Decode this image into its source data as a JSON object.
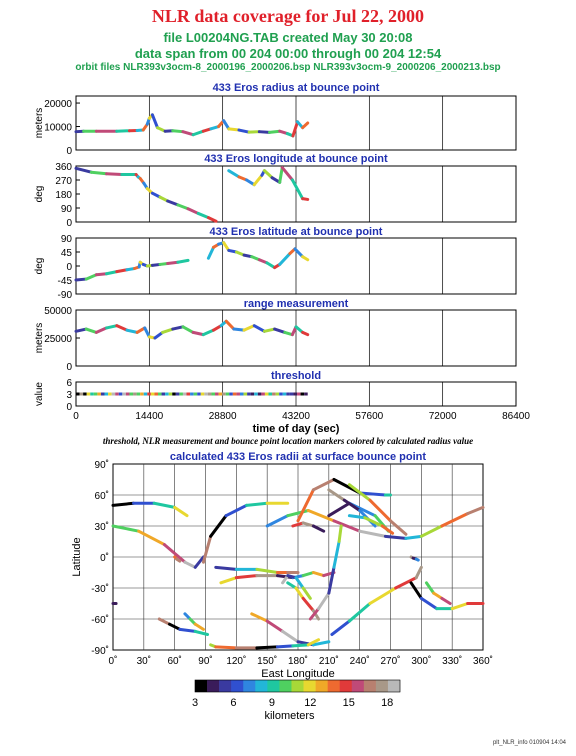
{
  "header": {
    "title": "NLR data coverage for Jul 22, 2000",
    "file_line": "file L00204NG.TAB created May 30 20:08",
    "span_line": "data span from 00 204 00:00 through 00 204 12:54",
    "orbit_line": "orbit files NLR393v3ocm-8_2000196_2000206.bsp NLR393v3ocm-9_2000206_2000213.bsp"
  },
  "colors": {
    "title": "#e0202a",
    "header_green": "#20a050",
    "panel_title": "#2030b0",
    "colorbar": [
      "#000000",
      "#3a1c5a",
      "#3a3aa0",
      "#3050d0",
      "#2f86e0",
      "#22b6d8",
      "#1fc7a0",
      "#4fd060",
      "#a8d838",
      "#e8d830",
      "#f0a828",
      "#ee6a30",
      "#e03a3a",
      "#c04a78",
      "#b88070",
      "#a89888",
      "#b8b8b8"
    ]
  },
  "footer": "plt_NLR_info 010904 14:04",
  "caption": "threshold, NLR measurement and bounce point location markers colored by calculated radius value",
  "chart_data": [
    {
      "type": "line",
      "title": "433 Eros radius at bounce point",
      "ylabel": "meters",
      "xlim": [
        0,
        86400
      ],
      "ylim": [
        0,
        23000
      ],
      "yticks": [
        "0",
        "10000",
        "20000"
      ],
      "series": [
        {
          "x": [
            0,
            1500,
            4000,
            8000,
            10500,
            12000,
            13200,
            14000,
            14400,
            15000,
            16000,
            17500,
            19000,
            21000,
            23000,
            25000,
            26500,
            28000,
            29000,
            30000,
            32000,
            34000,
            36000,
            38000,
            40000,
            41500,
            42600,
            43500,
            44500,
            45500
          ],
          "y": [
            7800,
            8000,
            8000,
            8000,
            8200,
            8300,
            8500,
            11000,
            13500,
            15000,
            9500,
            8000,
            8200,
            7800,
            6500,
            8000,
            9000,
            10000,
            12500,
            9000,
            8500,
            7600,
            7800,
            7500,
            8000,
            7000,
            6000,
            12000,
            9500,
            11500
          ]
        }
      ]
    },
    {
      "type": "line",
      "title": "433 Eros longitude at bounce point",
      "ylabel": "deg",
      "xlim": [
        0,
        86400
      ],
      "ylim": [
        0,
        360
      ],
      "yticks": [
        "0",
        "90",
        "180",
        "270",
        "360"
      ],
      "series": [
        {
          "x": [
            0,
            3000,
            6000,
            9000,
            11800,
            12200,
            12600,
            13300,
            14000,
            15000,
            16500,
            18000,
            20000,
            22000,
            24000,
            26000,
            27500
          ],
          "y": [
            345,
            320,
            310,
            305,
            305,
            290,
            280,
            250,
            215,
            185,
            160,
            135,
            110,
            85,
            55,
            28,
            5
          ]
        },
        {
          "x": [
            30000,
            32000,
            33500,
            35000,
            36500,
            37000,
            38500,
            40000,
            40500,
            42500,
            44500,
            45500
          ],
          "y": [
            330,
            290,
            270,
            240,
            300,
            330,
            285,
            255,
            350,
            270,
            150,
            145
          ]
        }
      ]
    },
    {
      "type": "line",
      "title": "433 Eros latitude at bounce point",
      "ylabel": "deg",
      "xlim": [
        0,
        86400
      ],
      "ylim": [
        -90,
        90
      ],
      "yticks": [
        "-90",
        "-45",
        "0",
        "45",
        "90"
      ],
      "series": [
        {
          "x": [
            0,
            2000,
            4000,
            6000,
            8000,
            10000,
            11500,
            12400,
            12600,
            13200,
            14000,
            15000,
            16500,
            18000,
            20000,
            22000
          ],
          "y": [
            -45,
            -42,
            -28,
            -25,
            -18,
            -12,
            -8,
            -3,
            12,
            5,
            0,
            2,
            5,
            8,
            12,
            18
          ]
        },
        {
          "x": [
            26000,
            27000,
            28000,
            29000,
            30000,
            31500,
            33000,
            34500,
            36000,
            37500,
            39000,
            40000,
            42000,
            43000,
            44500,
            45500
          ],
          "y": [
            25,
            60,
            70,
            75,
            50,
            45,
            35,
            30,
            20,
            10,
            -5,
            5,
            40,
            55,
            30,
            20
          ]
        }
      ]
    },
    {
      "type": "line",
      "title": "range measurement",
      "ylabel": "meters",
      "xlim": [
        0,
        86400
      ],
      "ylim": [
        0,
        50000
      ],
      "yticks": [
        "0",
        "25000",
        "50000"
      ],
      "series": [
        {
          "x": [
            0,
            2000,
            4000,
            6000,
            8000,
            10000,
            12000,
            13500,
            14400,
            15500,
            17000,
            19000,
            21000,
            23000,
            25000,
            27000,
            28500,
            29500,
            31000,
            33000,
            35000,
            37000,
            39000,
            41000,
            42500,
            43200,
            44500,
            45500
          ],
          "y": [
            31000,
            33000,
            30000,
            34000,
            36000,
            32000,
            30000,
            34000,
            26000,
            25000,
            30000,
            33000,
            35000,
            30000,
            28000,
            32000,
            36000,
            40000,
            33000,
            32000,
            36000,
            31000,
            33000,
            30000,
            28000,
            35000,
            30000,
            28000
          ]
        }
      ]
    },
    {
      "type": "scatter",
      "title": "threshold",
      "ylabel": "value",
      "xlabel": "time of day (sec)",
      "xlim": [
        0,
        86400
      ],
      "ylim": [
        0,
        6
      ],
      "yticks": [
        "0",
        "3",
        "6"
      ],
      "xticks": [
        "0",
        "14400",
        "28800",
        "43200",
        "57600",
        "72000",
        "86400"
      ],
      "x_extent": [
        0,
        45500
      ],
      "level": 3
    },
    {
      "type": "scatter",
      "title": "calculated 433 Eros radii at surface bounce point",
      "xlabel": "East Longitude",
      "ylabel": "Latitude",
      "xlim": [
        0,
        360
      ],
      "ylim": [
        -90,
        90
      ],
      "xticks": [
        "0˚",
        "30˚",
        "60˚",
        "90˚",
        "120˚",
        "150˚",
        "180˚",
        "210˚",
        "240˚",
        "270˚",
        "300˚",
        "330˚",
        "360˚"
      ],
      "yticks": [
        "-90˚",
        "-60˚",
        "-30˚",
        "0˚",
        "30˚",
        "60˚",
        "90˚"
      ],
      "colorbar": {
        "label": "kilometers",
        "ticks": [
          "3",
          "6",
          "9",
          "12",
          "15",
          "18"
        ],
        "range": [
          3,
          19
        ]
      },
      "tracks": [
        {
          "lon": [
            0,
            20,
            40,
            60,
            72
          ],
          "lat": [
            50,
            52,
            52,
            48,
            40
          ]
        },
        {
          "lon": [
            0,
            25,
            50,
            70,
            80,
            88
          ],
          "lat": [
            30,
            25,
            12,
            -5,
            -10,
            0
          ]
        },
        {
          "lon": [
            88,
            95,
            110,
            130,
            150,
            170
          ],
          "lat": [
            -5,
            20,
            40,
            50,
            52,
            52
          ]
        },
        {
          "lon": [
            150,
            170,
            190,
            215,
            240,
            265,
            285,
            300,
            320,
            345,
            360
          ],
          "lat": [
            30,
            40,
            45,
            35,
            25,
            20,
            18,
            20,
            30,
            42,
            48
          ]
        },
        {
          "lon": [
            180,
            195,
            215,
            240,
            265,
            270
          ],
          "lat": [
            35,
            65,
            75,
            62,
            60,
            60
          ]
        },
        {
          "lon": [
            210,
            230,
            255,
            268
          ],
          "lat": [
            40,
            52,
            40,
            25
          ]
        },
        {
          "lon": [
            230,
            250,
            270,
            285
          ],
          "lat": [
            70,
            55,
            35,
            22
          ]
        },
        {
          "lon": [
            210,
            225,
            240,
            255
          ],
          "lat": [
            65,
            55,
            45,
            30
          ]
        },
        {
          "lon": [
            230,
            245,
            262,
            272
          ],
          "lat": [
            40,
            38,
            30,
            23
          ]
        },
        {
          "lon": [
            175,
            185,
            195,
            205
          ],
          "lat": [
            30,
            33,
            30,
            25
          ]
        },
        {
          "lon": [
            100,
            120,
            140,
            160,
            170,
            180
          ],
          "lat": [
            -10,
            -12,
            -12,
            -15,
            -15,
            -15
          ]
        },
        {
          "lon": [
            105,
            120,
            140,
            160,
            175,
            185,
            195,
            205,
            215
          ],
          "lat": [
            -25,
            -20,
            -18,
            -18,
            -20,
            -18,
            -15,
            -18,
            -15
          ]
        },
        {
          "lon": [
            165,
            170,
            178,
            185,
            192
          ],
          "lat": [
            -25,
            -18,
            -20,
            -30,
            -40
          ]
        },
        {
          "lon": [
            170,
            178,
            185,
            195,
            200
          ],
          "lat": [
            -25,
            -30,
            -40,
            -52,
            -60
          ]
        },
        {
          "lon": [
            192,
            200,
            210,
            215,
            220,
            222
          ],
          "lat": [
            -60,
            -50,
            -35,
            -10,
            15,
            30
          ]
        },
        {
          "lon": [
            213,
            230,
            250,
            275,
            295,
            300
          ],
          "lat": [
            -75,
            -62,
            -45,
            -30,
            -20,
            -10
          ]
        },
        {
          "lon": [
            135,
            150,
            165,
            180,
            195,
            210
          ],
          "lat": [
            -55,
            -62,
            -72,
            -82,
            -85,
            -82
          ]
        },
        {
          "lon": [
            290,
            300,
            315,
            330,
            345,
            360
          ],
          "lat": [
            -25,
            -40,
            -50,
            -50,
            -45,
            -45
          ]
        },
        {
          "lon": [
            305,
            312,
            320,
            328
          ],
          "lat": [
            -25,
            -35,
            -40,
            -45
          ]
        },
        {
          "lon": [
            45,
            55,
            65,
            80,
            92
          ],
          "lat": [
            -60,
            -65,
            -70,
            -72,
            -75
          ]
        },
        {
          "lon": [
            70,
            75,
            80,
            88
          ],
          "lat": [
            -55,
            -60,
            -65,
            -70
          ]
        },
        {
          "lon": [
            60,
            62,
            65
          ],
          "lat": [
            0,
            -2,
            -4
          ]
        },
        {
          "lon": [
            0,
            3
          ],
          "lat": [
            -45,
            -45
          ]
        },
        {
          "lon": [
            95,
            100,
            120,
            140,
            160,
            175,
            190,
            200
          ],
          "lat": [
            -85,
            -87,
            -88,
            -88,
            -87,
            -86,
            -85,
            -80
          ]
        },
        {
          "lon": [
            290,
            292,
            295,
            297
          ],
          "lat": [
            0,
            -1,
            -2,
            -3
          ]
        }
      ]
    }
  ]
}
